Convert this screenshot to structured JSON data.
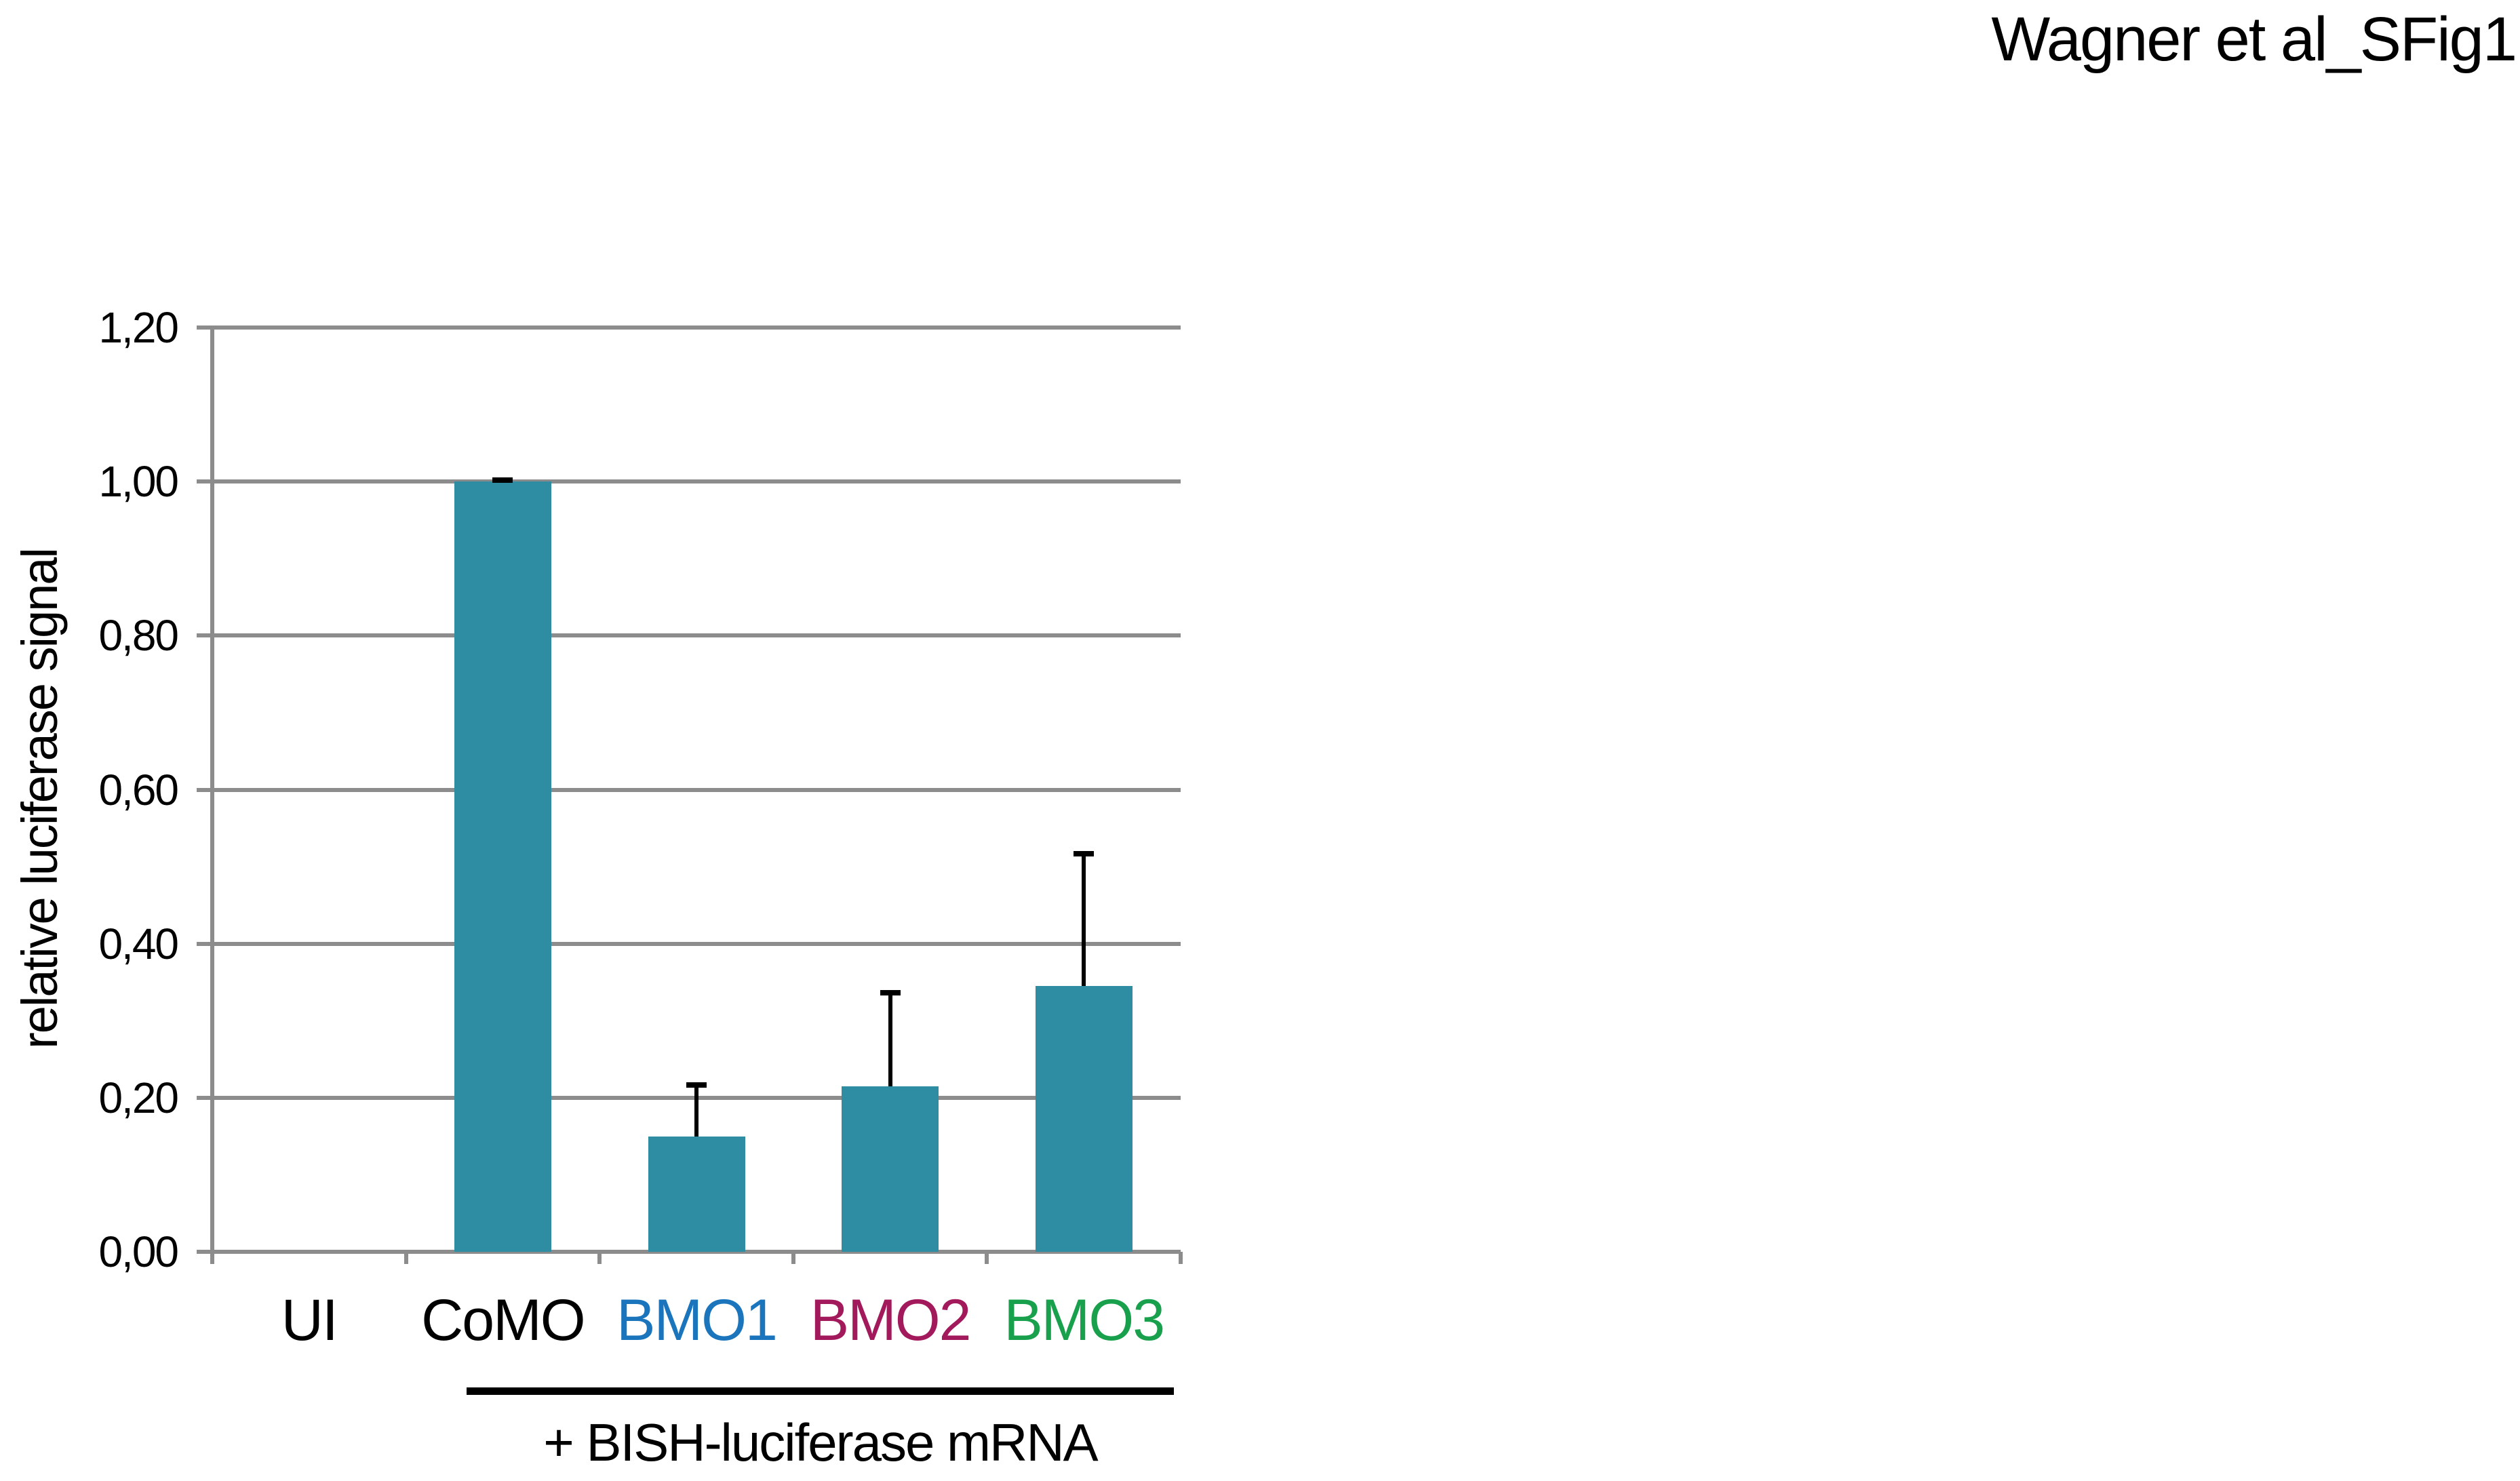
{
  "title": "Wagner et al_SFig1",
  "chart_data": {
    "type": "bar",
    "title": "",
    "categories": [
      "UI",
      "CoMO",
      "BMO1",
      "BMO2",
      "BMO3"
    ],
    "values": [
      0,
      1.0,
      0.15,
      0.215,
      0.345
    ],
    "errors_plus": [
      0,
      0.005,
      0.07,
      0.125,
      0.175
    ],
    "xlabel": "",
    "ylabel": "relative luciferase signal",
    "ylim": [
      0,
      1.2
    ],
    "ytick_values": [
      0.0,
      0.2,
      0.4,
      0.6,
      0.8,
      1.0,
      1.2
    ],
    "ytick_labels": [
      "0,00",
      "0,20",
      "0,40",
      "0,60",
      "0,80",
      "1,00",
      "1,20"
    ],
    "grid": true,
    "legend": false,
    "bar_color": "#2E8CA3",
    "grid_color": "#8C8C8C",
    "error_color": "#000000",
    "category_label_colors": [
      "#000000",
      "#000000",
      "#1B75BC",
      "#A21A5C",
      "#18A04C"
    ],
    "group_annotation": {
      "label": "+ BISH-luciferase mRNA",
      "span_categories": [
        "CoMO",
        "BMO1",
        "BMO2",
        "BMO3"
      ]
    }
  }
}
